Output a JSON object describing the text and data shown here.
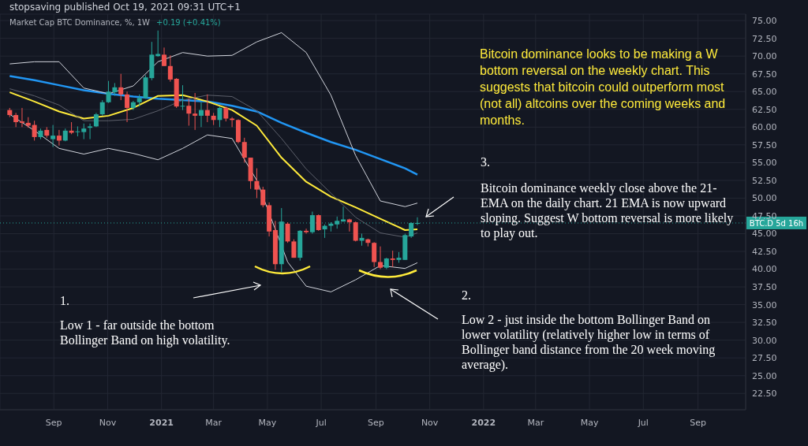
{
  "chart_data": {
    "type": "candlestick",
    "title": "Market Cap BTC Dominance, %, 1W",
    "subtitle": "stopsaving published Oct 19, 2021 09:31 UTC+1",
    "x": [
      "2020-07-13",
      "2020-07-20",
      "2020-07-27",
      "2020-08-03",
      "2020-08-10",
      "2020-08-17",
      "2020-08-24",
      "2020-08-31",
      "2020-09-07",
      "2020-09-14",
      "2020-09-21",
      "2020-09-28",
      "2020-10-05",
      "2020-10-12",
      "2020-10-19",
      "2020-10-26",
      "2020-11-02",
      "2020-11-09",
      "2020-11-16",
      "2020-11-23",
      "2020-11-30",
      "2020-12-07",
      "2020-12-14",
      "2020-12-21",
      "2020-12-28",
      "2021-01-04",
      "2021-01-11",
      "2021-01-18",
      "2021-01-25",
      "2021-02-01",
      "2021-02-08",
      "2021-02-15",
      "2021-02-22",
      "2021-03-01",
      "2021-03-08",
      "2021-03-15",
      "2021-03-22",
      "2021-03-29",
      "2021-04-05",
      "2021-04-12",
      "2021-04-19",
      "2021-04-26",
      "2021-05-03",
      "2021-05-10",
      "2021-05-17",
      "2021-05-24",
      "2021-05-31",
      "2021-06-07",
      "2021-06-14",
      "2021-06-21",
      "2021-06-28",
      "2021-07-05",
      "2021-07-12",
      "2021-07-19",
      "2021-07-26",
      "2021-08-02",
      "2021-08-09",
      "2021-08-16",
      "2021-08-23",
      "2021-08-30",
      "2021-09-06",
      "2021-09-13",
      "2021-09-20",
      "2021-09-27",
      "2021-10-04",
      "2021-10-11",
      "2021-10-18"
    ],
    "ohlc": [
      [
        62.4,
        62.7,
        61.4,
        61.7
      ],
      [
        61.7,
        62.0,
        60.0,
        60.7
      ],
      [
        60.8,
        62.7,
        60.0,
        60.6
      ],
      [
        60.6,
        61.4,
        59.9,
        60.2
      ],
      [
        60.3,
        60.9,
        58.1,
        58.6
      ],
      [
        58.6,
        59.8,
        58.3,
        59.5
      ],
      [
        59.6,
        60.0,
        58.5,
        58.8
      ],
      [
        58.3,
        60.3,
        57.2,
        58.8
      ],
      [
        58.8,
        59.6,
        57.4,
        58.1
      ],
      [
        58.1,
        59.8,
        58.0,
        59.5
      ],
      [
        59.5,
        60.7,
        59.0,
        59.2
      ],
      [
        59.3,
        60.1,
        58.7,
        59.4
      ],
      [
        59.3,
        60.5,
        58.3,
        59.8
      ],
      [
        59.9,
        60.5,
        58.3,
        60.1
      ],
      [
        60.1,
        62.0,
        60.0,
        61.8
      ],
      [
        61.8,
        63.8,
        61.6,
        63.5
      ],
      [
        63.5,
        66.5,
        63.4,
        65.0
      ],
      [
        64.9,
        66.2,
        64.4,
        65.6
      ],
      [
        65.6,
        67.5,
        63.8,
        64.6
      ],
      [
        64.6,
        65.0,
        60.7,
        62.7
      ],
      [
        62.7,
        63.7,
        62.4,
        63.5
      ],
      [
        63.5,
        64.6,
        62.9,
        64.1
      ],
      [
        64.1,
        67.3,
        64.0,
        67.0
      ],
      [
        66.9,
        72.0,
        66.6,
        70.2
      ],
      [
        70.0,
        73.6,
        69.9,
        70.3
      ],
      [
        70.2,
        71.2,
        68.6,
        68.6
      ],
      [
        68.6,
        70.1,
        66.4,
        66.7
      ],
      [
        66.8,
        66.9,
        62.7,
        62.9
      ],
      [
        62.9,
        65.9,
        62.4,
        63.0
      ],
      [
        63.0,
        64.0,
        60.2,
        61.9
      ],
      [
        61.9,
        64.8,
        59.6,
        61.6
      ],
      [
        61.6,
        63.5,
        60.0,
        62.4
      ],
      [
        62.4,
        64.6,
        60.7,
        61.6
      ],
      [
        61.6,
        62.0,
        60.3,
        61.0
      ],
      [
        61.0,
        62.9,
        60.0,
        62.7
      ],
      [
        62.7,
        62.9,
        60.8,
        61.2
      ],
      [
        61.2,
        61.4,
        60.0,
        61.0
      ],
      [
        61.0,
        61.1,
        57.7,
        57.9
      ],
      [
        57.9,
        58.5,
        55.0,
        55.7
      ],
      [
        55.7,
        55.7,
        51.3,
        52.4
      ],
      [
        52.4,
        54.2,
        50.0,
        51.2
      ],
      [
        51.2,
        51.6,
        48.7,
        49.0
      ],
      [
        49.0,
        49.4,
        44.6,
        45.3
      ],
      [
        45.5,
        46.8,
        39.9,
        40.7
      ],
      [
        40.7,
        48.6,
        39.6,
        46.7
      ],
      [
        46.4,
        46.6,
        43.7,
        43.9
      ],
      [
        43.9,
        44.2,
        41.6,
        41.6
      ],
      [
        41.6,
        45.5,
        41.2,
        45.4
      ],
      [
        45.4,
        45.7,
        45.0,
        45.2
      ],
      [
        45.2,
        48.1,
        45.0,
        47.6
      ],
      [
        47.6,
        47.7,
        45.4,
        45.5
      ],
      [
        45.6,
        46.3,
        44.4,
        46.1
      ],
      [
        46.1,
        46.6,
        45.3,
        46.4
      ],
      [
        46.3,
        47.4,
        45.7,
        46.8
      ],
      [
        46.7,
        48.8,
        46.7,
        47.0
      ],
      [
        47.0,
        47.1,
        45.3,
        46.6
      ],
      [
        46.6,
        46.7,
        43.9,
        44.0
      ],
      [
        44.0,
        45.0,
        43.3,
        44.4
      ],
      [
        44.2,
        44.3,
        43.2,
        43.7
      ],
      [
        43.7,
        43.8,
        40.3,
        41.0
      ],
      [
        41.0,
        43.2,
        40.0,
        40.2
      ],
      [
        40.2,
        41.6,
        40.0,
        41.5
      ],
      [
        41.5,
        42.6,
        40.3,
        41.3
      ],
      [
        41.3,
        42.4,
        40.9,
        41.6
      ],
      [
        41.3,
        45.0,
        41.3,
        44.8
      ],
      [
        44.6,
        46.6,
        44.4,
        46.5
      ],
      [
        46.4,
        47.3,
        46.2,
        46.5
      ]
    ],
    "colors": [
      "#ef5350",
      "#ef5350",
      "#ef5350",
      "#ef5350",
      "#ef5350",
      "#26a69a",
      "#ef5350",
      "#26a69a",
      "#ef5350",
      "#26a69a",
      "#ef5350",
      "#26a69a",
      "#26a69a",
      "#26a69a",
      "#26a69a",
      "#26a69a",
      "#26a69a",
      "#26a69a",
      "#ef5350",
      "#ef5350",
      "#26a69a",
      "#26a69a",
      "#26a69a",
      "#26a69a",
      "#26a69a",
      "#ef5350",
      "#ef5350",
      "#ef5350",
      "#26a69a",
      "#ef5350",
      "#ef5350",
      "#26a69a",
      "#ef5350",
      "#ef5350",
      "#26a69a",
      "#ef5350",
      "#ef5350",
      "#ef5350",
      "#ef5350",
      "#ef5350",
      "#ef5350",
      "#ef5350",
      "#ef5350",
      "#ef5350",
      "#26a69a",
      "#ef5350",
      "#ef5350",
      "#26a69a",
      "#ef5350",
      "#26a69a",
      "#ef5350",
      "#26a69a",
      "#26a69a",
      "#26a69a",
      "#26a69a",
      "#ef5350",
      "#ef5350",
      "#26a69a",
      "#ef5350",
      "#ef5350",
      "#ef5350",
      "#26a69a",
      "#ef5350",
      "#26a69a",
      "#26a69a",
      "#26a69a",
      "#26a69a"
    ],
    "series": [
      {
        "type": "line",
        "color": "#2196f3",
        "x": [
          "2020-07-13",
          "2020-08-10",
          "2020-09-07",
          "2020-10-05",
          "2020-11-02",
          "2020-11-30",
          "2020-12-28",
          "2021-01-25",
          "2021-02-22",
          "2021-03-22",
          "2021-04-19",
          "2021-05-17",
          "2021-06-14",
          "2021-07-12",
          "2021-08-09",
          "2021-09-06",
          "2021-10-04",
          "2021-10-18"
        ],
        "values": [
          67.2,
          66.6,
          65.9,
          65.2,
          64.7,
          64.3,
          64.0,
          63.8,
          63.6,
          63.0,
          62.2,
          60.6,
          59.2,
          57.9,
          56.8,
          55.5,
          54.2,
          53.3
        ]
      },
      {
        "type": "line",
        "color": "#ffeb3b",
        "x": [
          "2020-07-13",
          "2020-08-10",
          "2020-09-07",
          "2020-10-05",
          "2020-11-02",
          "2020-11-30",
          "2020-12-28",
          "2021-01-25",
          "2021-02-22",
          "2021-03-22",
          "2021-04-19",
          "2021-05-17",
          "2021-06-14",
          "2021-07-12",
          "2021-08-09",
          "2021-09-06",
          "2021-10-04",
          "2021-10-18"
        ],
        "values": [
          64.9,
          63.6,
          62.2,
          61.2,
          61.6,
          62.7,
          64.4,
          64.5,
          63.6,
          62.4,
          60.2,
          55.7,
          52.3,
          50.2,
          48.7,
          47.1,
          45.5,
          45.6
        ]
      },
      {
        "type": "line",
        "color": "#d1d4dc",
        "x": [
          "2020-07-13",
          "2020-08-10",
          "2020-09-07",
          "2020-10-05",
          "2020-11-02",
          "2020-11-30",
          "2020-12-28",
          "2021-01-25",
          "2021-02-22",
          "2021-03-22",
          "2021-04-19",
          "2021-05-17",
          "2021-06-14",
          "2021-07-12",
          "2021-08-09",
          "2021-09-06",
          "2021-10-04",
          "2021-10-18"
        ],
        "values": [
          68.9,
          69.2,
          69.2,
          65.5,
          64.7,
          65.8,
          69.2,
          70.5,
          70.0,
          70.1,
          72.0,
          73.3,
          70.5,
          64.5,
          56.0,
          49.6,
          48.8,
          49.3
        ]
      },
      {
        "type": "line",
        "color": "#d1d4dc",
        "x": [
          "2020-07-13",
          "2020-08-10",
          "2020-09-07",
          "2020-10-05",
          "2020-11-02",
          "2020-11-30",
          "2020-12-28",
          "2021-01-25",
          "2021-02-22",
          "2021-03-22",
          "2021-04-19",
          "2021-05-24",
          "2021-06-14",
          "2021-07-12",
          "2021-08-09",
          "2021-09-06",
          "2021-10-04",
          "2021-10-18"
        ],
        "values": [
          61.8,
          59.5,
          57.0,
          56.2,
          57.0,
          56.3,
          55.4,
          57.0,
          58.9,
          58.4,
          52.5,
          41.0,
          37.6,
          36.8,
          38.5,
          40.5,
          40.1,
          40.9
        ]
      },
      {
        "type": "line",
        "color": "#5d606b",
        "x": [
          "2020-07-13",
          "2020-08-10",
          "2020-09-07",
          "2020-10-05",
          "2020-11-02",
          "2020-11-30",
          "2020-12-28",
          "2021-01-25",
          "2021-02-22",
          "2021-03-22",
          "2021-04-19",
          "2021-05-17",
          "2021-06-14",
          "2021-07-12",
          "2021-08-09",
          "2021-09-06",
          "2021-10-04",
          "2021-10-18"
        ],
        "values": [
          65.4,
          64.4,
          63.1,
          60.9,
          60.9,
          61.1,
          62.3,
          63.8,
          64.5,
          64.3,
          62.3,
          58.4,
          54.1,
          50.7,
          47.3,
          45.1,
          44.5,
          45.1
        ]
      }
    ],
    "xlim": [
      "2020-07-02",
      "2022-10-25"
    ],
    "xticks": [
      {
        "value": "2020-09",
        "label": "Sep"
      },
      {
        "value": "2020-11",
        "label": "Nov"
      },
      {
        "value": "2021",
        "label": "2021"
      },
      {
        "value": "2021-03",
        "label": "Mar"
      },
      {
        "value": "2021-05",
        "label": "May"
      },
      {
        "value": "2021-07",
        "label": "Jul"
      },
      {
        "value": "2021-09",
        "label": "Sep"
      },
      {
        "value": "2021-11",
        "label": "Nov"
      },
      {
        "value": "2022",
        "label": "2022"
      },
      {
        "value": "2022-03",
        "label": "Mar"
      },
      {
        "value": "2022-05",
        "label": "May"
      },
      {
        "value": "2022-07",
        "label": "Jul"
      },
      {
        "value": "2022-09",
        "label": "Sep"
      }
    ],
    "ylim": [
      20.2,
      75.9
    ],
    "yticks": [
      {
        "value": 22.5,
        "label": "22.50"
      },
      {
        "value": 25,
        "label": "25.00"
      },
      {
        "value": 27.5,
        "label": "27.50"
      },
      {
        "value": 30,
        "label": "30.00"
      },
      {
        "value": 32.5,
        "label": "32.50"
      },
      {
        "value": 35,
        "label": "35.00"
      },
      {
        "value": 37.5,
        "label": "37.50"
      },
      {
        "value": 40,
        "label": "40.00"
      },
      {
        "value": 42.5,
        "label": "42.50"
      },
      {
        "value": 45,
        "label": "45.00"
      },
      {
        "value": 47.5,
        "label": "47.50"
      },
      {
        "value": 50,
        "label": "50.00"
      },
      {
        "value": 52.5,
        "label": "52.50"
      },
      {
        "value": 55,
        "label": "55.00"
      },
      {
        "value": 57.5,
        "label": "57.50"
      },
      {
        "value": 60,
        "label": "60.00"
      },
      {
        "value": 62.5,
        "label": "62.50"
      },
      {
        "value": 65,
        "label": "65.00"
      },
      {
        "value": 67.5,
        "label": "67.50"
      },
      {
        "value": 70,
        "label": "70.00"
      },
      {
        "value": 72.5,
        "label": "72.50"
      },
      {
        "value": 75,
        "label": "75.00"
      }
    ],
    "grid": true,
    "ref_lines": [
      {
        "axis": "y",
        "value": 46.5,
        "label": "BTC.D 5d 16h",
        "color": "#26a69a",
        "line_style": "dotted"
      }
    ],
    "annotations": [
      "+0.19 (+0.41%)",
      "Bitcoin dominance looks to be making a W bottom reversal on the weekly chart. This suggests that bitcoin could outperform most (not all) altcoins over the coming weeks and months.",
      "3.",
      "Bitcoin dominance weekly close above the 21-EMA on the daily chart. 21 EMA is now upward sloping. Suggest W bottom reversal is more likely to play out.",
      "1.",
      "Low 1 - far outside the bottom Bollinger Band on high volatility.",
      "2.",
      "Low 2 - just inside the bottom Bollinger Band on lower volatility (relatively higher low in terms of Bollinger band distance from the 20 week moving average)."
    ]
  }
}
